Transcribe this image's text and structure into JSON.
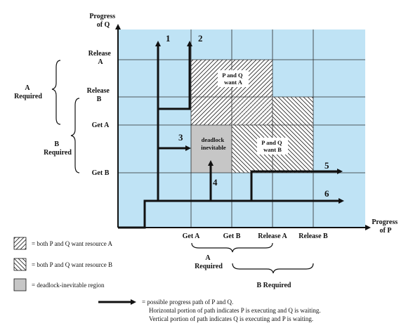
{
  "axes": {
    "y_title_line1": "Progress",
    "y_title_line2": "of Q",
    "x_title_line1": "Progress",
    "x_title_line2": "of P",
    "y_ticks": [
      {
        "line1": "Release",
        "line2": "A"
      },
      {
        "line1": "Release",
        "line2": "B"
      },
      {
        "line1": "Get A",
        "line2": ""
      },
      {
        "line1": "Get B",
        "line2": ""
      }
    ],
    "x_ticks": [
      "Get A",
      "Get B",
      "Release A",
      "Release B"
    ]
  },
  "brackets": {
    "a_required_line1": "A",
    "a_required_line2": "Required",
    "b_required_line1": "B",
    "b_required_line2": "Required",
    "x_a_required_line1": "A",
    "x_a_required_line2": "Required",
    "x_b_required": "B Required"
  },
  "regions": {
    "q_wants_a_line1": "P and Q",
    "q_wants_a_line2": "want A",
    "deadlock_line1": "deadlock",
    "deadlock_line2": "inevitable",
    "q_wants_b_line1": "P and Q",
    "q_wants_b_line2": "want B"
  },
  "paths": [
    "1",
    "2",
    "3",
    "4",
    "5",
    "6"
  ],
  "legend": {
    "want_a": "= both P and Q want resource A",
    "want_b": "= both P and Q want resource B",
    "deadlock": "= deadlock-inevitable region",
    "path_line1": "= possible progress path of P and Q.",
    "path_line2": "Horizontal portion of path indicates P is executing and Q is waiting.",
    "path_line3": "Vertical portion of path indicates Q is executing and P is waiting."
  },
  "colors": {
    "background": "#bfe3f5",
    "grid": "#2a2a2a",
    "deadlock": "#c6c6c6",
    "path": "#111111"
  }
}
